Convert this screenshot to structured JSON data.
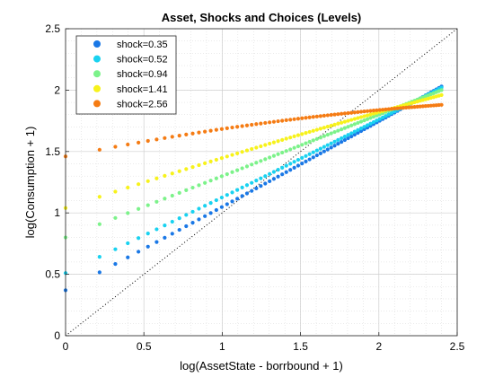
{
  "chart_data": {
    "type": "scatter",
    "title": "Asset, Shocks and Choices (Levels)",
    "xlabel": "log(AssetState - borrbound + 1)",
    "ylabel": "log(Consumption + 1)",
    "xlim": [
      0,
      2.5
    ],
    "ylim": [
      0,
      2.5
    ],
    "xticks": [
      "0",
      "0.5",
      "1",
      "1.5",
      "2",
      "2.5"
    ],
    "yticks": [
      "0",
      "0.5",
      "1",
      "1.5",
      "2",
      "2.5"
    ],
    "grid": true,
    "minor_grid": true,
    "legend_placement": "top-left",
    "reference_line": {
      "style": "dotted",
      "color": "#000000",
      "from": [
        0,
        0
      ],
      "to": [
        2.5,
        2.5
      ]
    },
    "series": [
      {
        "name": "shock=0.35",
        "color": "#1a78e6",
        "y_start": 0.37,
        "y_end": 2.03,
        "curve": -0.05
      },
      {
        "name": "shock=0.52",
        "color": "#19d2f0",
        "y_start": 0.51,
        "y_end": 2.02,
        "curve": -0.05
      },
      {
        "name": "shock=0.94",
        "color": "#7cf28a",
        "y_start": 0.8,
        "y_end": 2.0,
        "curve": 0.0
      },
      {
        "name": "shock=1.41",
        "color": "#f7f21b",
        "y_start": 1.04,
        "y_end": 1.96,
        "curve": 0.1
      },
      {
        "name": "shock=2.56",
        "color": "#f57c14",
        "y_start": 1.46,
        "y_end": 1.88,
        "curve": 0.2
      }
    ]
  }
}
